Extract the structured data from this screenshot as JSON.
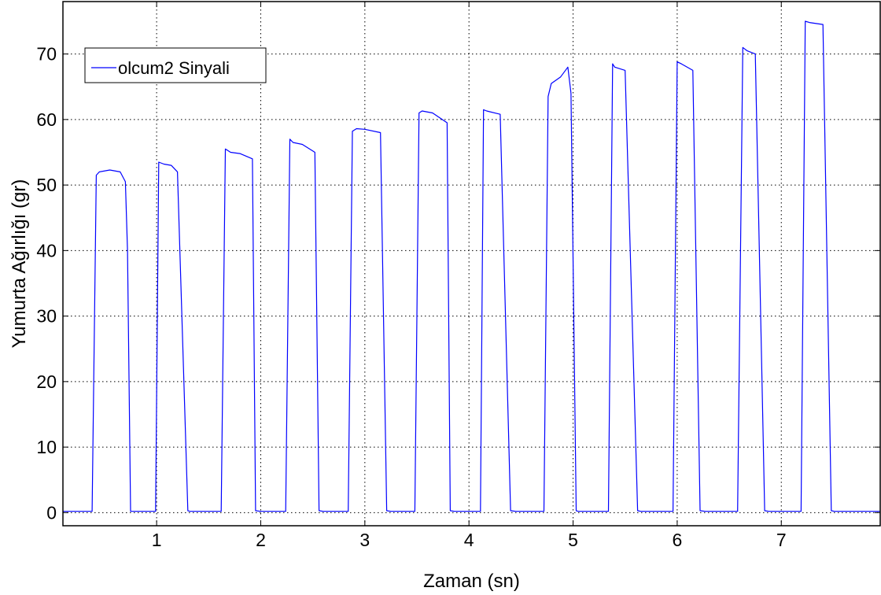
{
  "chart_data": {
    "type": "line",
    "title": "",
    "xlabel": "Zaman (sn)",
    "ylabel": "Yumurta Ağırlığı (gr)",
    "xlim": [
      0.1,
      7.95
    ],
    "ylim": [
      -2,
      78
    ],
    "xticks": [
      1,
      2,
      3,
      4,
      5,
      6,
      7
    ],
    "yticks": [
      0,
      10,
      20,
      30,
      40,
      50,
      60,
      70
    ],
    "grid": true,
    "legend_position": "top-left",
    "series": [
      {
        "name": "olcum2 Sinyali",
        "color": "#0000ff",
        "x": [
          0.1,
          0.38,
          0.42,
          0.45,
          0.55,
          0.65,
          0.7,
          0.72,
          0.75,
          0.82,
          0.92,
          0.99,
          1.02,
          1.07,
          1.14,
          1.2,
          1.3,
          1.32,
          1.37,
          1.62,
          1.66,
          1.71,
          1.8,
          1.92,
          1.95,
          2.0,
          2.24,
          2.28,
          2.31,
          2.4,
          2.52,
          2.56,
          2.6,
          2.84,
          2.88,
          2.92,
          3.0,
          3.15,
          3.21,
          3.25,
          3.48,
          3.52,
          3.55,
          3.65,
          3.79,
          3.82,
          3.86,
          4.11,
          4.14,
          4.17,
          4.3,
          4.4,
          4.45,
          4.5,
          4.72,
          4.76,
          4.79,
          4.88,
          4.95,
          4.98,
          5.03,
          5.05,
          5.1,
          5.34,
          5.38,
          5.4,
          5.5,
          5.62,
          5.65,
          5.7,
          5.96,
          6.0,
          6.04,
          6.15,
          6.22,
          6.27,
          6.33,
          6.58,
          6.63,
          6.67,
          6.75,
          6.84,
          6.88,
          6.95,
          7.19,
          7.23,
          7.27,
          7.4,
          7.48,
          7.51,
          7.57,
          7.95
        ],
        "y": [
          0.2,
          0.2,
          51.5,
          52.0,
          52.3,
          52.0,
          50.5,
          40.0,
          0.2,
          0.2,
          0.2,
          0.2,
          53.5,
          53.2,
          53.0,
          52.0,
          0.3,
          0.2,
          0.2,
          0.2,
          55.5,
          55.0,
          54.8,
          54.0,
          0.3,
          0.2,
          0.2,
          57.0,
          56.5,
          56.2,
          55.0,
          0.3,
          0.2,
          0.2,
          58.2,
          58.6,
          58.5,
          58.0,
          0.3,
          0.2,
          0.2,
          61.0,
          61.3,
          61.0,
          59.5,
          0.3,
          0.2,
          0.2,
          61.5,
          61.3,
          60.8,
          0.3,
          0.2,
          0.2,
          0.2,
          63.5,
          65.5,
          66.5,
          68.0,
          64.0,
          0.3,
          0.2,
          0.2,
          0.2,
          68.5,
          68.0,
          67.5,
          0.3,
          0.2,
          0.2,
          0.2,
          68.8,
          68.5,
          67.5,
          0.3,
          0.2,
          0.2,
          0.2,
          71.0,
          70.5,
          70.0,
          0.3,
          0.2,
          0.2,
          0.2,
          75.0,
          74.8,
          74.5,
          0.3,
          0.2,
          0.2,
          0.2
        ]
      }
    ]
  }
}
